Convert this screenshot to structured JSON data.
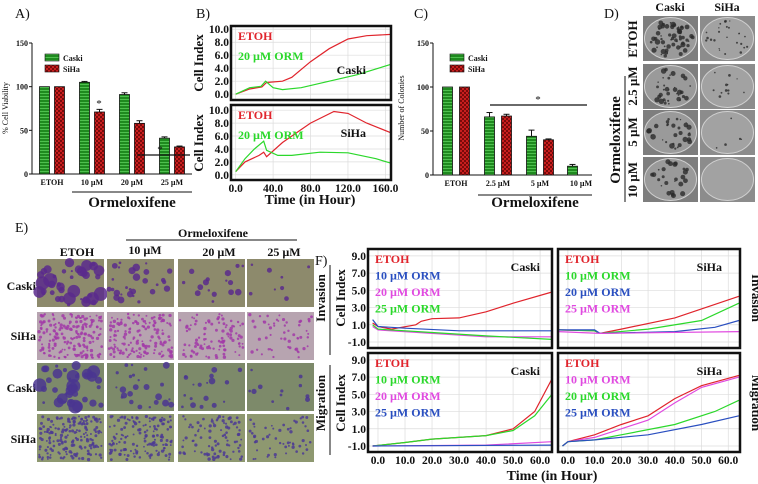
{
  "panels": {
    "a": "A)",
    "b": "B)",
    "c": "C)",
    "d": "D)",
    "e": "E)",
    "f": "F)"
  },
  "colors": {
    "red": "#e0242c",
    "green": "#2bd82b",
    "blue": "#2a4fc0",
    "magenta": "#e04ae0",
    "bar_green": "#1f8a1f",
    "bar_red": "#c81e1e"
  },
  "panel_a": {
    "ylabel": "% Cell Viability",
    "group_label": "Ormeloxifene"
  },
  "panel_b": {
    "xlabel": "Time (in Hour)"
  },
  "panel_c": {
    "ylabel": "Number of Colonies",
    "group_label": "Ormeloxifene"
  },
  "panel_d": {
    "columns": [
      "Caski",
      "SiHa"
    ],
    "rows": [
      "ETOH",
      "2.5 µM",
      "5 µM",
      "10 µM"
    ],
    "group_label": "Ormeloxifene"
  },
  "panel_e": {
    "group_label": "Ormeloxifene",
    "columns": [
      "ETOH",
      "10 µM",
      "20 µM",
      "25 µM"
    ],
    "rows": [
      "Caski",
      "SiHa",
      "Caski",
      "SiHa"
    ]
  },
  "panel_f": {
    "row_labels": [
      "Invasion",
      "Migration"
    ],
    "ylabel": "Cell Index",
    "xlabel": "Time (in Hour)"
  },
  "chart_data": [
    {
      "type": "bar",
      "panel": "A",
      "ylabel": "% Cell Viability",
      "xlabel": "Ormeloxifene",
      "categories": [
        "ETOH",
        "10 µM",
        "20 µM",
        "25 µM"
      ],
      "ylim": [
        0,
        150
      ],
      "yticks": [
        0,
        50,
        100,
        150
      ],
      "series": [
        {
          "name": "Caski",
          "values": [
            100,
            105,
            91,
            41
          ],
          "errors": [
            0,
            1,
            2,
            1.5
          ]
        },
        {
          "name": "SiHa",
          "values": [
            100,
            71,
            58,
            31
          ],
          "errors": [
            0,
            3,
            3,
            1
          ]
        }
      ],
      "significance": "*"
    },
    {
      "type": "line",
      "panel": "B",
      "title": "Caski",
      "ylabel": "Cell Index",
      "xlabel": "Time (in Hour)",
      "xlim": [
        -5,
        166
      ],
      "ylim": [
        -0.9,
        10.5
      ],
      "yticks": [
        0,
        2,
        4,
        6,
        8,
        10
      ],
      "ytick_labels": [
        "0.0",
        "2.0",
        "4.0",
        "6.0",
        "8.0",
        "10.0"
      ],
      "xticks": [
        0,
        40,
        80,
        120,
        160
      ],
      "xtick_labels": [
        "0.0",
        "40.0",
        "80.0",
        "120.0",
        "160.0"
      ],
      "series": [
        {
          "name": "ETOH",
          "color": "#e0242c",
          "points": [
            [
              0,
              0
            ],
            [
              15,
              0.8
            ],
            [
              28,
              1.1
            ],
            [
              33,
              1.8
            ],
            [
              50,
              2.0
            ],
            [
              60,
              2.6
            ],
            [
              80,
              5
            ],
            [
              100,
              7
            ],
            [
              120,
              8.5
            ],
            [
              140,
              9
            ],
            [
              166,
              9.2
            ]
          ]
        },
        {
          "name": "20 µM ORM",
          "color": "#2bd82b",
          "points": [
            [
              0,
              0
            ],
            [
              15,
              1
            ],
            [
              27,
              1.2
            ],
            [
              32,
              2
            ],
            [
              40,
              1
            ],
            [
              50,
              0.7
            ],
            [
              70,
              1
            ],
            [
              100,
              2
            ],
            [
              130,
              3
            ],
            [
              166,
              4.6
            ]
          ]
        }
      ]
    },
    {
      "type": "line",
      "panel": "B",
      "title": "SiHa",
      "ylabel": "Cell Index",
      "xlabel": "Time (in Hour)",
      "xlim": [
        -5,
        166
      ],
      "ylim": [
        -0.8,
        10.8
      ],
      "yticks": [
        0,
        2,
        4,
        6,
        8,
        10
      ],
      "ytick_labels": [
        "0.0",
        "2.0",
        "4.0",
        "6.0",
        "8.0",
        "10.0"
      ],
      "xticks": [
        0,
        40,
        80,
        120,
        160
      ],
      "xtick_labels": [
        "0.0",
        "40.0",
        "80.0",
        "120.0",
        "160.0"
      ],
      "series": [
        {
          "name": "ETOH",
          "color": "#e0242c",
          "points": [
            [
              0,
              0.5
            ],
            [
              10,
              2
            ],
            [
              25,
              3
            ],
            [
              30,
              3.5
            ],
            [
              33,
              2.8
            ],
            [
              50,
              5
            ],
            [
              80,
              8
            ],
            [
              105,
              9.8
            ],
            [
              120,
              9.5
            ],
            [
              140,
              8
            ],
            [
              166,
              6.5
            ]
          ]
        },
        {
          "name": "20 µM ORM",
          "color": "#2bd82b",
          "points": [
            [
              0,
              0.5
            ],
            [
              10,
              2.5
            ],
            [
              20,
              4
            ],
            [
              30,
              5.2
            ],
            [
              33,
              3.8
            ],
            [
              45,
              3
            ],
            [
              60,
              3
            ],
            [
              90,
              3.5
            ],
            [
              120,
              3.4
            ],
            [
              150,
              2.5
            ],
            [
              166,
              1.8
            ]
          ]
        }
      ]
    },
    {
      "type": "bar",
      "panel": "C",
      "ylabel": "Number of Colonies",
      "xlabel": "Ormeloxifene",
      "categories": [
        "ETOH",
        "2.5 µM",
        "5 µM",
        "10 µM"
      ],
      "ylim": [
        0,
        150
      ],
      "yticks": [
        0,
        50,
        100,
        150
      ],
      "series": [
        {
          "name": "Caski",
          "values": [
            100,
            66,
            44,
            10
          ],
          "errors": [
            0,
            5,
            7,
            2
          ]
        },
        {
          "name": "SiHa",
          "values": [
            100,
            67,
            40,
            0
          ],
          "errors": [
            0,
            2,
            1,
            0
          ]
        }
      ],
      "significance": "*"
    },
    {
      "type": "line",
      "panel": "F",
      "assay": "Invasion",
      "title": "Caski",
      "ylabel": "Cell Index",
      "xlabel": "Time (in Hour)",
      "xlim": [
        -3.7,
        64.4
      ],
      "ylim": [
        -1.7,
        9.8
      ],
      "yticks": [
        -1,
        1,
        3,
        5,
        7,
        9
      ],
      "ytick_labels": [
        "-1.0",
        "1.0",
        "3.0",
        "5.0",
        "7.0",
        "9.0"
      ],
      "xticks": [
        0,
        10,
        20,
        30,
        40,
        50,
        60
      ],
      "xtick_labels": [
        "0.0",
        "10.0",
        "20.0",
        "30.0",
        "40.0",
        "50.0",
        "60.0"
      ],
      "series": [
        {
          "name": "ETOH",
          "color": "#e0242c",
          "points": [
            [
              -2,
              1.2
            ],
            [
              0,
              0.8
            ],
            [
              5,
              0.5
            ],
            [
              14,
              1
            ],
            [
              16,
              1.4
            ],
            [
              20,
              1.7
            ],
            [
              30,
              1.8
            ],
            [
              40,
              2.5
            ],
            [
              50,
              3.5
            ],
            [
              64.4,
              4.8
            ]
          ]
        },
        {
          "name": "10 µM ORM",
          "color": "#2a4fc0",
          "points": [
            [
              -2,
              1.6
            ],
            [
              0,
              0.8
            ],
            [
              10,
              0.6
            ],
            [
              30,
              0.3
            ],
            [
              64.4,
              0.3
            ]
          ]
        },
        {
          "name": "20 µM ORM",
          "color": "#e04ae0",
          "points": [
            [
              -2,
              0.8
            ],
            [
              0,
              0.4
            ],
            [
              20,
              0
            ],
            [
              40,
              -0.4
            ],
            [
              64.4,
              -0.4
            ]
          ]
        },
        {
          "name": "25 µM ORM",
          "color": "#2bd82b",
          "points": [
            [
              -2,
              1
            ],
            [
              0,
              0.5
            ],
            [
              20,
              0.1
            ],
            [
              40,
              -0.3
            ],
            [
              64.4,
              -0.7
            ]
          ]
        }
      ]
    },
    {
      "type": "line",
      "panel": "F",
      "assay": "Invasion",
      "title": "SiHa",
      "ylabel": "Cell Index",
      "xlabel": "Time (in Hour)",
      "xlim": [
        -3.7,
        64.4
      ],
      "ylim": [
        -1.7,
        9.8
      ],
      "yticks": [
        -1,
        1,
        3,
        5,
        7,
        9
      ],
      "ytick_labels": [
        "-1.0",
        "1.0",
        "3.0",
        "5.0",
        "7.0",
        "9.0"
      ],
      "xticks": [
        0,
        10,
        20,
        30,
        40,
        50,
        60
      ],
      "xtick_labels": [
        "0.0",
        "10.0",
        "20.0",
        "30.0",
        "40.0",
        "50.0",
        "60.0"
      ],
      "series": [
        {
          "name": "ETOH",
          "color": "#e0242c",
          "points": [
            [
              -3.7,
              0.4
            ],
            [
              10,
              0.3
            ],
            [
              12,
              0
            ],
            [
              20,
              0.5
            ],
            [
              40,
              1.8
            ],
            [
              64,
              4.3
            ]
          ]
        },
        {
          "name": "10 µM ORM",
          "color": "#2bd82b",
          "points": [
            [
              -3.7,
              0.4
            ],
            [
              10,
              0.3
            ],
            [
              12,
              0
            ],
            [
              30,
              0.5
            ],
            [
              50,
              1.5
            ],
            [
              64,
              3.5
            ]
          ]
        },
        {
          "name": "20 µM ORM",
          "color": "#2a4fc0",
          "points": [
            [
              -3.7,
              0.4
            ],
            [
              10,
              0.4
            ],
            [
              12,
              0
            ],
            [
              40,
              0.2
            ],
            [
              55,
              0.7
            ],
            [
              64,
              1.5
            ]
          ]
        },
        {
          "name": "25 µM ORM",
          "color": "#e04ae0",
          "points": [
            [
              -3.7,
              0.2
            ],
            [
              12,
              0
            ],
            [
              64,
              0.2
            ]
          ]
        }
      ]
    },
    {
      "type": "line",
      "panel": "F",
      "assay": "Migration",
      "title": "Caski",
      "ylabel": "Cell Index",
      "xlabel": "Time (in Hour)",
      "xlim": [
        -3.7,
        64.4
      ],
      "ylim": [
        -1.7,
        9.8
      ],
      "yticks": [
        -1,
        1,
        3,
        5,
        7,
        9
      ],
      "ytick_labels": [
        "-1.0",
        "1.0",
        "3.0",
        "5.0",
        "7.0",
        "9.0"
      ],
      "xticks": [
        0,
        10,
        20,
        30,
        40,
        50,
        60
      ],
      "xtick_labels": [
        "0.0",
        "10.0",
        "20.0",
        "30.0",
        "40.0",
        "50.0",
        "60.0"
      ],
      "series": [
        {
          "name": "ETOH",
          "color": "#e0242c",
          "points": [
            [
              -2,
              -1
            ],
            [
              10,
              -0.6
            ],
            [
              20,
              -0.2
            ],
            [
              30,
              0
            ],
            [
              40,
              0.2
            ],
            [
              50,
              1
            ],
            [
              58,
              3
            ],
            [
              64.4,
              6.8
            ]
          ]
        },
        {
          "name": "10 µM ORM",
          "color": "#2bd82b",
          "points": [
            [
              -2,
              -1
            ],
            [
              10,
              -0.6
            ],
            [
              20,
              -0.2
            ],
            [
              30,
              0
            ],
            [
              40,
              0.2
            ],
            [
              50,
              0.8
            ],
            [
              58,
              2.5
            ],
            [
              64.4,
              5
            ]
          ]
        },
        {
          "name": "20 µM ORM",
          "color": "#e04ae0",
          "points": [
            [
              -2,
              -1
            ],
            [
              40,
              -0.9
            ],
            [
              64.4,
              -0.5
            ]
          ]
        },
        {
          "name": "25 µM ORM",
          "color": "#2a4fc0",
          "points": [
            [
              -2,
              -1
            ],
            [
              64.4,
              -0.9
            ]
          ]
        }
      ]
    },
    {
      "type": "line",
      "panel": "F",
      "assay": "Migration",
      "title": "SiHa",
      "ylabel": "Cell Index",
      "xlabel": "Time (in Hour)",
      "xlim": [
        -3.7,
        64.4
      ],
      "ylim": [
        -1.7,
        9.8
      ],
      "yticks": [
        -1,
        1,
        3,
        5,
        7,
        9
      ],
      "ytick_labels": [
        "-1.0",
        "1.0",
        "3.0",
        "5.0",
        "7.0",
        "9.0"
      ],
      "xticks": [
        0,
        10,
        20,
        30,
        40,
        50,
        60
      ],
      "xtick_labels": [
        "0.0",
        "10.0",
        "20.0",
        "30.0",
        "40.0",
        "50.0",
        "60.0"
      ],
      "series": [
        {
          "name": "ETOH",
          "color": "#e0242c",
          "points": [
            [
              -2,
              -1
            ],
            [
              0,
              -0.5
            ],
            [
              10,
              0.3
            ],
            [
              20,
              1.5
            ],
            [
              30,
              2.5
            ],
            [
              40,
              4.5
            ],
            [
              50,
              6
            ],
            [
              64,
              7.2
            ]
          ]
        },
        {
          "name": "10 µM ORM",
          "color": "#e04ae0",
          "points": [
            [
              -2,
              -1
            ],
            [
              0,
              -0.5
            ],
            [
              10,
              0
            ],
            [
              20,
              1
            ],
            [
              30,
              2
            ],
            [
              40,
              4
            ],
            [
              50,
              5.8
            ],
            [
              64,
              7
            ]
          ]
        },
        {
          "name": "20 µM ORM",
          "color": "#2bd82b",
          "points": [
            [
              -2,
              -1
            ],
            [
              0,
              -0.5
            ],
            [
              10,
              -0.3
            ],
            [
              20,
              0.3
            ],
            [
              40,
              1.5
            ],
            [
              55,
              3
            ],
            [
              64,
              4.3
            ]
          ]
        },
        {
          "name": "25 µM ORM",
          "color": "#2a4fc0",
          "points": [
            [
              -2,
              -1
            ],
            [
              0,
              -0.5
            ],
            [
              10,
              -0.3
            ],
            [
              30,
              0.3
            ],
            [
              50,
              1.5
            ],
            [
              64,
              2.5
            ]
          ]
        }
      ]
    }
  ]
}
